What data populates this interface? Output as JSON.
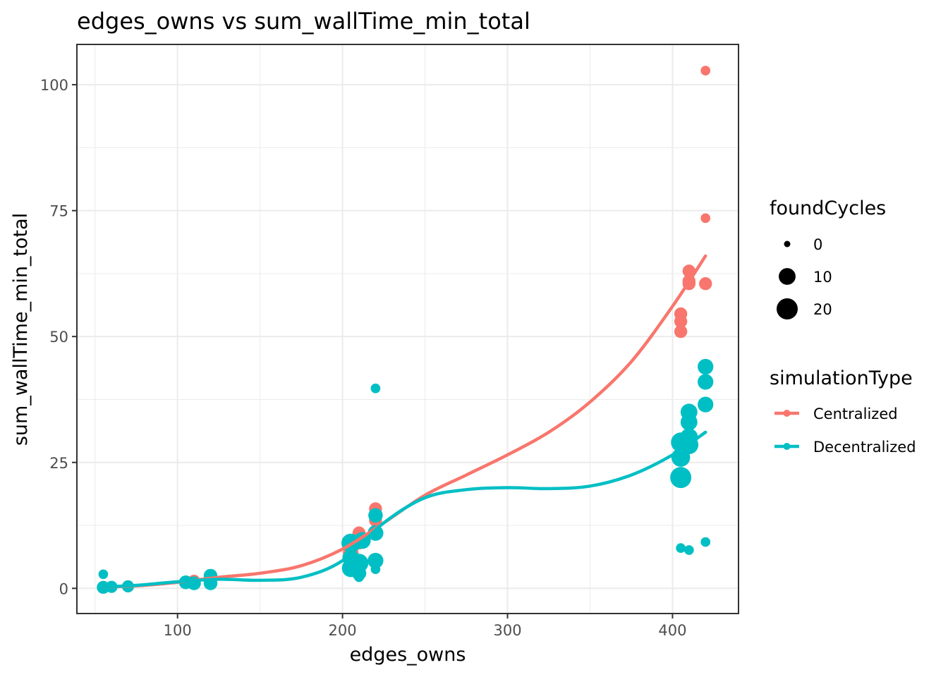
{
  "chart_data": {
    "type": "scatter",
    "title": "edges_owns  vs  sum_wallTime_min_total",
    "xlabel": "edges_owns",
    "ylabel": "sum_wallTime_min_total",
    "xlim": [
      39,
      440
    ],
    "ylim": [
      -5,
      108
    ],
    "x_major_ticks": [
      100,
      200,
      300,
      400
    ],
    "x_minor_ticks": [
      50,
      150,
      250,
      350
    ],
    "y_major_ticks": [
      0,
      25,
      50,
      75,
      100
    ],
    "y_minor_ticks": [
      12.5,
      37.5,
      62.5,
      87.5
    ],
    "x_tick_labels": [
      "100",
      "200",
      "300",
      "400"
    ],
    "y_tick_labels": [
      "0",
      "25",
      "50",
      "75",
      "100"
    ],
    "grid": true,
    "theme": "bw",
    "legend_position": "right",
    "size_legend": {
      "title": "foundCycles",
      "breaks": [
        0,
        10,
        20
      ],
      "labels": [
        "0",
        "10",
        "20"
      ]
    },
    "color_legend": {
      "title": "simulationType",
      "labels": [
        "Centralized",
        "Decentralized"
      ]
    },
    "colors": {
      "Centralized": "#F8766D",
      "Decentralized": "#00BFC4"
    },
    "series": [
      {
        "name": "Centralized",
        "points": [
          {
            "x": 55,
            "y": 0.2,
            "size": 1
          },
          {
            "x": 60,
            "y": 0.3,
            "size": 1
          },
          {
            "x": 70,
            "y": 0.4,
            "size": 3
          },
          {
            "x": 105,
            "y": 1.0,
            "size": 2
          },
          {
            "x": 110,
            "y": 1.5,
            "size": 3
          },
          {
            "x": 120,
            "y": 2.0,
            "size": 3
          },
          {
            "x": 205,
            "y": 7.0,
            "size": 8
          },
          {
            "x": 210,
            "y": 11.0,
            "size": 4
          },
          {
            "x": 210,
            "y": 9.0,
            "size": 4
          },
          {
            "x": 220,
            "y": 15.8,
            "size": 4
          },
          {
            "x": 220,
            "y": 14.8,
            "size": 4
          },
          {
            "x": 220,
            "y": 13.5,
            "size": 4
          },
          {
            "x": 405,
            "y": 54.5,
            "size": 4
          },
          {
            "x": 405,
            "y": 53.0,
            "size": 4
          },
          {
            "x": 405,
            "y": 51.0,
            "size": 4
          },
          {
            "x": 410,
            "y": 63.0,
            "size": 4
          },
          {
            "x": 410,
            "y": 61.0,
            "size": 4
          },
          {
            "x": 410,
            "y": 60.5,
            "size": 4
          },
          {
            "x": 420,
            "y": 102.8,
            "size": 1
          },
          {
            "x": 420,
            "y": 73.5,
            "size": 1
          },
          {
            "x": 420,
            "y": 60.5,
            "size": 4
          }
        ],
        "trend": {
          "x": [
            55,
            75,
            100,
            125,
            150,
            175,
            200,
            225,
            250,
            275,
            300,
            325,
            350,
            375,
            400,
            420
          ],
          "y": [
            0.3,
            0.5,
            1.2,
            2.2,
            3.0,
            4.5,
            7.8,
            13.0,
            18.5,
            22.5,
            26.5,
            31.0,
            37.0,
            45.0,
            56.0,
            66.0
          ]
        }
      },
      {
        "name": "Decentralized",
        "points": [
          {
            "x": 55,
            "y": 2.8,
            "size": 1
          },
          {
            "x": 55,
            "y": 0.2,
            "size": 4
          },
          {
            "x": 60,
            "y": 0.3,
            "size": 3
          },
          {
            "x": 70,
            "y": 0.4,
            "size": 3
          },
          {
            "x": 105,
            "y": 1.2,
            "size": 5
          },
          {
            "x": 110,
            "y": 1.0,
            "size": 5
          },
          {
            "x": 120,
            "y": 2.5,
            "size": 5
          },
          {
            "x": 120,
            "y": 1.0,
            "size": 5
          },
          {
            "x": 205,
            "y": 9.0,
            "size": 14
          },
          {
            "x": 205,
            "y": 6.0,
            "size": 10
          },
          {
            "x": 205,
            "y": 4.0,
            "size": 12
          },
          {
            "x": 210,
            "y": 5.0,
            "size": 14
          },
          {
            "x": 210,
            "y": 3.0,
            "size": 6
          },
          {
            "x": 210,
            "y": 2.2,
            "size": 1
          },
          {
            "x": 212,
            "y": 9.5,
            "size": 10
          },
          {
            "x": 220,
            "y": 39.7,
            "size": 1
          },
          {
            "x": 220,
            "y": 14.5,
            "size": 6
          },
          {
            "x": 220,
            "y": 11.0,
            "size": 8
          },
          {
            "x": 220,
            "y": 5.5,
            "size": 8
          },
          {
            "x": 220,
            "y": 3.8,
            "size": 1
          },
          {
            "x": 405,
            "y": 8.0,
            "size": 1
          },
          {
            "x": 405,
            "y": 29.0,
            "size": 16
          },
          {
            "x": 405,
            "y": 26.0,
            "size": 14
          },
          {
            "x": 405,
            "y": 22.0,
            "size": 20
          },
          {
            "x": 410,
            "y": 7.6,
            "size": 1
          },
          {
            "x": 410,
            "y": 35.0,
            "size": 10
          },
          {
            "x": 410,
            "y": 33.0,
            "size": 10
          },
          {
            "x": 410,
            "y": 30.0,
            "size": 12
          },
          {
            "x": 410,
            "y": 28.5,
            "size": 14
          },
          {
            "x": 420,
            "y": 44.0,
            "size": 8
          },
          {
            "x": 420,
            "y": 41.0,
            "size": 8
          },
          {
            "x": 420,
            "y": 36.5,
            "size": 8
          },
          {
            "x": 420,
            "y": 9.2,
            "size": 1
          }
        ],
        "trend": {
          "x": [
            55,
            75,
            100,
            125,
            150,
            175,
            200,
            225,
            250,
            275,
            300,
            325,
            350,
            375,
            400,
            420
          ],
          "y": [
            0.3,
            0.6,
            1.3,
            1.8,
            1.6,
            2.2,
            5.5,
            13.0,
            18.0,
            19.6,
            20.0,
            19.8,
            20.3,
            22.5,
            26.5,
            31.0
          ]
        }
      }
    ]
  }
}
